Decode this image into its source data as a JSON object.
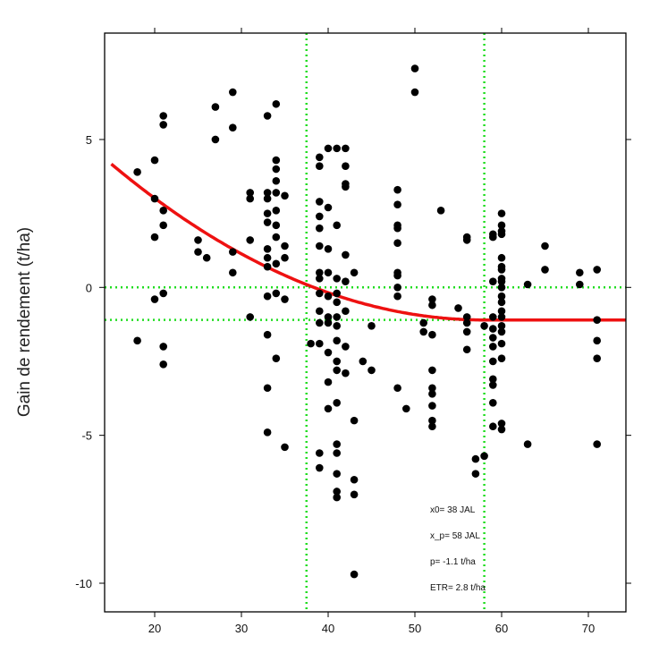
{
  "chart_data": {
    "type": "scatter",
    "title": "",
    "xlabel": "",
    "ylabel": "Gain de rendement (t/ha)",
    "xlim": [
      15,
      75
    ],
    "ylim": [
      -11,
      8.5
    ],
    "xticks": [
      20,
      30,
      40,
      50,
      60,
      70
    ],
    "yticks": [
      5,
      0,
      -5,
      -10
    ],
    "grid": false,
    "colors": {
      "points": "#000000",
      "fit": "#ee1111",
      "reference": "#22dd22",
      "frame": "#000000"
    },
    "reference_lines": {
      "vertical": [
        37.5,
        58
      ],
      "horizontal": [
        0,
        -1.1
      ]
    },
    "fit_curve": {
      "type": "quadratic-plateau",
      "x0": 37.5,
      "x_p": 58,
      "p": -1.1,
      "curvature": 0.00285
    },
    "annotations": [
      "x0= 38 JAL",
      "x_p= 58 JAL",
      "p= -1.1 t/ha",
      "ETR= 2.8 t/ha"
    ],
    "points": [
      [
        18,
        3.9
      ],
      [
        18,
        -1.8
      ],
      [
        20,
        4.3
      ],
      [
        20,
        3.0
      ],
      [
        20,
        1.7
      ],
      [
        20,
        -0.4
      ],
      [
        21,
        5.8
      ],
      [
        21,
        5.5
      ],
      [
        21,
        2.6
      ],
      [
        21,
        2.1
      ],
      [
        21,
        -0.2
      ],
      [
        21,
        -2.0
      ],
      [
        21,
        -2.6
      ],
      [
        25,
        1.6
      ],
      [
        25,
        1.2
      ],
      [
        26,
        1.0
      ],
      [
        27,
        6.1
      ],
      [
        27,
        5.0
      ],
      [
        29,
        6.6
      ],
      [
        29,
        5.4
      ],
      [
        29,
        1.2
      ],
      [
        29,
        0.5
      ],
      [
        31,
        3.2
      ],
      [
        31,
        3.0
      ],
      [
        31,
        1.6
      ],
      [
        31,
        -1.0
      ],
      [
        33,
        5.8
      ],
      [
        33,
        3.2
      ],
      [
        33,
        3.0
      ],
      [
        33,
        2.5
      ],
      [
        33,
        2.2
      ],
      [
        33,
        1.3
      ],
      [
        33,
        1.0
      ],
      [
        33,
        0.7
      ],
      [
        33,
        -0.3
      ],
      [
        33,
        -1.6
      ],
      [
        33,
        -3.4
      ],
      [
        33,
        -4.9
      ],
      [
        34,
        6.2
      ],
      [
        34,
        4.3
      ],
      [
        34,
        4.0
      ],
      [
        34,
        3.6
      ],
      [
        34,
        3.2
      ],
      [
        34,
        2.6
      ],
      [
        34,
        2.1
      ],
      [
        34,
        1.7
      ],
      [
        34,
        0.8
      ],
      [
        34,
        -0.2
      ],
      [
        34,
        -2.4
      ],
      [
        35,
        3.1
      ],
      [
        35,
        1.4
      ],
      [
        35,
        1.0
      ],
      [
        35,
        -0.4
      ],
      [
        35,
        -5.4
      ],
      [
        38,
        -1.9
      ],
      [
        39,
        4.4
      ],
      [
        39,
        4.1
      ],
      [
        39,
        2.9
      ],
      [
        39,
        2.4
      ],
      [
        39,
        2.0
      ],
      [
        39,
        1.4
      ],
      [
        39,
        0.5
      ],
      [
        39,
        0.3
      ],
      [
        39,
        -0.2
      ],
      [
        39,
        -0.8
      ],
      [
        39,
        -1.2
      ],
      [
        39,
        -1.9
      ],
      [
        39,
        -5.6
      ],
      [
        39,
        -6.1
      ],
      [
        40,
        4.7
      ],
      [
        40,
        2.7
      ],
      [
        40,
        1.3
      ],
      [
        40,
        0.5
      ],
      [
        40,
        -0.3
      ],
      [
        40,
        -1.0
      ],
      [
        40,
        -1.2
      ],
      [
        40,
        -2.2
      ],
      [
        40,
        -3.2
      ],
      [
        40,
        -4.1
      ],
      [
        41,
        4.7
      ],
      [
        41,
        2.1
      ],
      [
        41,
        0.3
      ],
      [
        41,
        -0.2
      ],
      [
        41,
        -0.5
      ],
      [
        41,
        -1.0
      ],
      [
        41,
        -1.3
      ],
      [
        41,
        -1.8
      ],
      [
        41,
        -2.5
      ],
      [
        41,
        -2.8
      ],
      [
        41,
        -3.9
      ],
      [
        41,
        -5.3
      ],
      [
        41,
        -5.6
      ],
      [
        41,
        -6.3
      ],
      [
        41,
        -6.9
      ],
      [
        41,
        -7.1
      ],
      [
        42,
        4.7
      ],
      [
        42,
        4.1
      ],
      [
        42,
        3.5
      ],
      [
        42,
        3.4
      ],
      [
        42,
        1.1
      ],
      [
        42,
        0.2
      ],
      [
        42,
        -0.8
      ],
      [
        42,
        -2.0
      ],
      [
        42,
        -2.9
      ],
      [
        43,
        0.5
      ],
      [
        43,
        -4.5
      ],
      [
        43,
        -6.5
      ],
      [
        43,
        -7.0
      ],
      [
        43,
        -9.7
      ],
      [
        44,
        -2.5
      ],
      [
        45,
        -1.3
      ],
      [
        45,
        -2.8
      ],
      [
        48,
        3.3
      ],
      [
        48,
        2.8
      ],
      [
        48,
        2.1
      ],
      [
        48,
        2.0
      ],
      [
        48,
        1.5
      ],
      [
        48,
        0.5
      ],
      [
        48,
        0.4
      ],
      [
        48,
        0.0
      ],
      [
        48,
        -0.3
      ],
      [
        48,
        -3.4
      ],
      [
        49,
        -4.1
      ],
      [
        50,
        7.4
      ],
      [
        50,
        6.6
      ],
      [
        51,
        -1.2
      ],
      [
        51,
        -1.5
      ],
      [
        52,
        -0.4
      ],
      [
        52,
        -0.6
      ],
      [
        52,
        -1.6
      ],
      [
        52,
        -2.8
      ],
      [
        52,
        -3.4
      ],
      [
        52,
        -3.6
      ],
      [
        52,
        -4.0
      ],
      [
        52,
        -4.5
      ],
      [
        52,
        -4.7
      ],
      [
        53,
        2.6
      ],
      [
        55,
        -0.7
      ],
      [
        56,
        1.7
      ],
      [
        56,
        1.6
      ],
      [
        56,
        -1.0
      ],
      [
        56,
        -1.2
      ],
      [
        56,
        -1.5
      ],
      [
        56,
        -2.1
      ],
      [
        57,
        -5.8
      ],
      [
        57,
        -6.3
      ],
      [
        58,
        -1.3
      ],
      [
        58,
        -5.7
      ],
      [
        59,
        1.8
      ],
      [
        59,
        1.7
      ],
      [
        59,
        0.2
      ],
      [
        59,
        -1.0
      ],
      [
        59,
        -1.4
      ],
      [
        59,
        -1.7
      ],
      [
        59,
        -2.0
      ],
      [
        59,
        -2.5
      ],
      [
        59,
        -3.1
      ],
      [
        59,
        -3.3
      ],
      [
        59,
        -3.9
      ],
      [
        59,
        -4.7
      ],
      [
        60,
        2.5
      ],
      [
        60,
        2.1
      ],
      [
        60,
        1.9
      ],
      [
        60,
        1.8
      ],
      [
        60,
        1.0
      ],
      [
        60,
        0.7
      ],
      [
        60,
        0.6
      ],
      [
        60,
        0.3
      ],
      [
        60,
        0.2
      ],
      [
        60,
        0.0
      ],
      [
        60,
        -0.3
      ],
      [
        60,
        -0.5
      ],
      [
        60,
        -0.8
      ],
      [
        60,
        -1.0
      ],
      [
        60,
        -1.3
      ],
      [
        60,
        -1.5
      ],
      [
        60,
        -1.9
      ],
      [
        60,
        -2.4
      ],
      [
        60,
        -4.6
      ],
      [
        60,
        -4.8
      ],
      [
        63,
        0.1
      ],
      [
        63,
        -5.3
      ],
      [
        65,
        1.4
      ],
      [
        65,
        0.6
      ],
      [
        69,
        0.5
      ],
      [
        69,
        0.1
      ],
      [
        71,
        0.6
      ],
      [
        71,
        -1.1
      ],
      [
        71,
        -1.8
      ],
      [
        71,
        -2.4
      ],
      [
        71,
        -5.3
      ]
    ]
  }
}
